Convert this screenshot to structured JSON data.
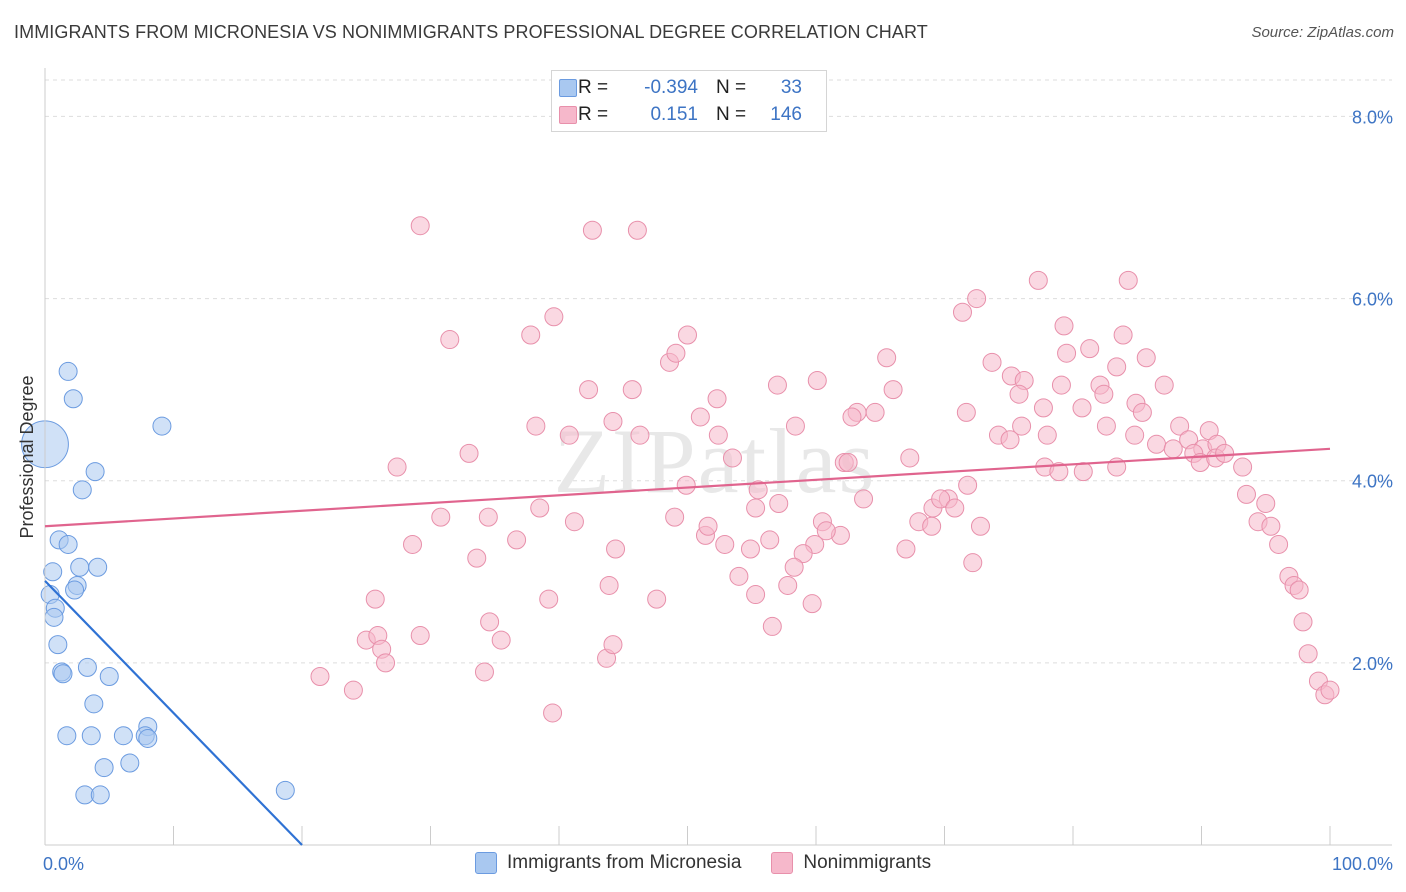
{
  "header": {
    "title": "IMMIGRANTS FROM MICRONESIA VS NONIMMIGRANTS PROFESSIONAL DEGREE CORRELATION CHART",
    "source": "Source: ZipAtlas.com"
  },
  "stats": {
    "blue": {
      "r_label": "R =",
      "r_value": "-0.394",
      "n_label": "N =",
      "n_value": "33"
    },
    "pink": {
      "r_label": "R =",
      "r_value": "0.151",
      "n_label": "N =",
      "n_value": "146"
    }
  },
  "legend": {
    "blue_label": "Immigrants from Micronesia",
    "pink_label": "Nonimmigrants"
  },
  "colors": {
    "blue_fill": "#a9c8f0",
    "blue_stroke": "#6b9be0",
    "blue_line": "#2f72d4",
    "pink_fill": "#f6b8cb",
    "pink_stroke": "#e890ab",
    "pink_line": "#e0648e",
    "grid": "#dddddd",
    "tick_label": "#3d74c4"
  },
  "chart_data": {
    "type": "scatter",
    "title": "IMMIGRANTS FROM MICRONESIA VS NONIMMIGRANTS PROFESSIONAL DEGREE CORRELATION CHART",
    "xlabel": "",
    "ylabel": "Professional Degree",
    "xlim": [
      0,
      100
    ],
    "ylim": [
      0,
      8.4
    ],
    "x_tick_labels": [
      "0.0%",
      "100.0%"
    ],
    "y_ticks": [
      2,
      4,
      6,
      8
    ],
    "y_tick_labels": [
      "2.0%",
      "4.0%",
      "6.0%",
      "8.0%"
    ],
    "watermark": "ZIPatlas",
    "series": [
      {
        "name": "Immigrants from Micronesia",
        "color": "blue",
        "points": [
          [
            0.0,
            4.4
          ],
          [
            1.8,
            5.2
          ],
          [
            2.2,
            4.9
          ],
          [
            9.1,
            4.6
          ],
          [
            3.9,
            4.1
          ],
          [
            2.9,
            3.9
          ],
          [
            1.1,
            3.35
          ],
          [
            1.8,
            3.3
          ],
          [
            0.6,
            3.0
          ],
          [
            2.7,
            3.05
          ],
          [
            4.1,
            3.05
          ],
          [
            2.5,
            2.85
          ],
          [
            2.3,
            2.8
          ],
          [
            0.4,
            2.75
          ],
          [
            0.8,
            2.6
          ],
          [
            0.7,
            2.5
          ],
          [
            1.0,
            2.2
          ],
          [
            3.3,
            1.95
          ],
          [
            1.3,
            1.9
          ],
          [
            1.4,
            1.88
          ],
          [
            5.0,
            1.85
          ],
          [
            3.8,
            1.55
          ],
          [
            1.7,
            1.2
          ],
          [
            3.6,
            1.2
          ],
          [
            6.1,
            1.2
          ],
          [
            8.0,
            1.3
          ],
          [
            7.8,
            1.2
          ],
          [
            8.0,
            1.17
          ],
          [
            4.6,
            0.85
          ],
          [
            6.6,
            0.9
          ],
          [
            3.1,
            0.55
          ],
          [
            4.3,
            0.55
          ],
          [
            18.7,
            0.6
          ]
        ],
        "sizes": [
          2.6,
          1,
          1,
          1,
          1,
          1,
          1,
          1,
          1,
          1,
          1,
          1,
          1,
          1,
          1,
          1,
          1,
          1,
          1,
          1,
          1,
          1,
          1,
          1,
          1,
          1,
          1,
          1,
          1,
          1,
          1,
          1,
          1
        ],
        "trend": {
          "x": [
            0,
            20
          ],
          "y": [
            2.9,
            0.0
          ]
        }
      },
      {
        "name": "Nonimmigrants",
        "color": "pink",
        "points": [
          [
            29.2,
            6.8
          ],
          [
            42.6,
            6.75
          ],
          [
            46.1,
            6.75
          ],
          [
            31.5,
            5.55
          ],
          [
            37.8,
            5.6
          ],
          [
            39.6,
            5.8
          ],
          [
            50.0,
            5.6
          ],
          [
            42.3,
            5.0
          ],
          [
            45.7,
            5.0
          ],
          [
            48.6,
            5.3
          ],
          [
            49.1,
            5.4
          ],
          [
            52.3,
            4.9
          ],
          [
            57.0,
            5.05
          ],
          [
            60.1,
            5.1
          ],
          [
            51.0,
            4.7
          ],
          [
            44.2,
            4.65
          ],
          [
            46.3,
            4.5
          ],
          [
            38.2,
            4.6
          ],
          [
            40.8,
            4.5
          ],
          [
            52.4,
            4.5
          ],
          [
            58.4,
            4.6
          ],
          [
            63.2,
            4.75
          ],
          [
            64.6,
            4.75
          ],
          [
            65.5,
            5.35
          ],
          [
            66.0,
            5.0
          ],
          [
            62.8,
            4.7
          ],
          [
            33.0,
            4.3
          ],
          [
            27.4,
            4.15
          ],
          [
            53.5,
            4.25
          ],
          [
            62.2,
            4.2
          ],
          [
            62.5,
            4.2
          ],
          [
            67.3,
            4.25
          ],
          [
            49.9,
            3.95
          ],
          [
            55.5,
            3.9
          ],
          [
            57.1,
            3.75
          ],
          [
            63.7,
            3.8
          ],
          [
            55.3,
            3.7
          ],
          [
            69.1,
            3.7
          ],
          [
            71.8,
            3.95
          ],
          [
            70.3,
            3.8
          ],
          [
            69.7,
            3.8
          ],
          [
            70.8,
            3.7
          ],
          [
            68.0,
            3.55
          ],
          [
            69.0,
            3.5
          ],
          [
            72.8,
            3.5
          ],
          [
            30.8,
            3.6
          ],
          [
            34.5,
            3.6
          ],
          [
            38.5,
            3.7
          ],
          [
            41.2,
            3.55
          ],
          [
            49.0,
            3.6
          ],
          [
            51.4,
            3.4
          ],
          [
            51.6,
            3.5
          ],
          [
            56.4,
            3.35
          ],
          [
            61.9,
            3.4
          ],
          [
            60.5,
            3.55
          ],
          [
            60.8,
            3.45
          ],
          [
            59.9,
            3.3
          ],
          [
            28.6,
            3.3
          ],
          [
            33.6,
            3.15
          ],
          [
            36.7,
            3.35
          ],
          [
            44.4,
            3.25
          ],
          [
            52.9,
            3.3
          ],
          [
            54.9,
            3.25
          ],
          [
            59.0,
            3.2
          ],
          [
            58.3,
            3.05
          ],
          [
            67.0,
            3.25
          ],
          [
            72.2,
            3.1
          ],
          [
            54.0,
            2.95
          ],
          [
            55.3,
            2.75
          ],
          [
            57.8,
            2.85
          ],
          [
            43.9,
            2.85
          ],
          [
            47.6,
            2.7
          ],
          [
            39.2,
            2.7
          ],
          [
            25.7,
            2.7
          ],
          [
            59.7,
            2.65
          ],
          [
            34.6,
            2.45
          ],
          [
            56.6,
            2.4
          ],
          [
            25.0,
            2.25
          ],
          [
            25.9,
            2.3
          ],
          [
            29.2,
            2.3
          ],
          [
            35.5,
            2.25
          ],
          [
            26.2,
            2.15
          ],
          [
            26.5,
            2.0
          ],
          [
            43.7,
            2.05
          ],
          [
            44.2,
            2.2
          ],
          [
            34.2,
            1.9
          ],
          [
            21.4,
            1.85
          ],
          [
            24.0,
            1.7
          ],
          [
            39.5,
            1.45
          ],
          [
            77.3,
            6.2
          ],
          [
            72.5,
            6.0
          ],
          [
            71.4,
            5.85
          ],
          [
            84.3,
            6.2
          ],
          [
            79.3,
            5.7
          ],
          [
            79.5,
            5.4
          ],
          [
            81.3,
            5.45
          ],
          [
            83.9,
            5.6
          ],
          [
            73.7,
            5.3
          ],
          [
            83.4,
            5.25
          ],
          [
            85.7,
            5.35
          ],
          [
            75.2,
            5.15
          ],
          [
            76.2,
            5.1
          ],
          [
            79.1,
            5.05
          ],
          [
            82.1,
            5.05
          ],
          [
            75.8,
            4.95
          ],
          [
            82.4,
            4.95
          ],
          [
            80.7,
            4.8
          ],
          [
            77.7,
            4.8
          ],
          [
            84.9,
            4.85
          ],
          [
            87.1,
            5.05
          ],
          [
            71.7,
            4.75
          ],
          [
            85.4,
            4.75
          ],
          [
            76.0,
            4.6
          ],
          [
            74.2,
            4.5
          ],
          [
            75.1,
            4.45
          ],
          [
            78.0,
            4.5
          ],
          [
            82.6,
            4.6
          ],
          [
            84.8,
            4.5
          ],
          [
            86.5,
            4.4
          ],
          [
            88.3,
            4.6
          ],
          [
            89.0,
            4.45
          ],
          [
            90.6,
            4.55
          ],
          [
            90.1,
            4.35
          ],
          [
            91.2,
            4.4
          ],
          [
            89.4,
            4.3
          ],
          [
            89.9,
            4.2
          ],
          [
            91.1,
            4.25
          ],
          [
            91.8,
            4.3
          ],
          [
            87.8,
            4.35
          ],
          [
            77.8,
            4.15
          ],
          [
            78.9,
            4.1
          ],
          [
            80.8,
            4.1
          ],
          [
            83.4,
            4.15
          ],
          [
            93.2,
            4.15
          ],
          [
            93.5,
            3.85
          ],
          [
            95.0,
            3.75
          ],
          [
            94.4,
            3.55
          ],
          [
            95.4,
            3.5
          ],
          [
            96.0,
            3.3
          ],
          [
            96.8,
            2.95
          ],
          [
            97.2,
            2.85
          ],
          [
            97.6,
            2.8
          ],
          [
            97.9,
            2.45
          ],
          [
            98.3,
            2.1
          ],
          [
            99.1,
            1.8
          ],
          [
            99.6,
            1.65
          ],
          [
            100.0,
            1.7
          ]
        ],
        "trend": {
          "x": [
            0,
            100
          ],
          "y": [
            3.5,
            4.35
          ]
        }
      }
    ]
  }
}
